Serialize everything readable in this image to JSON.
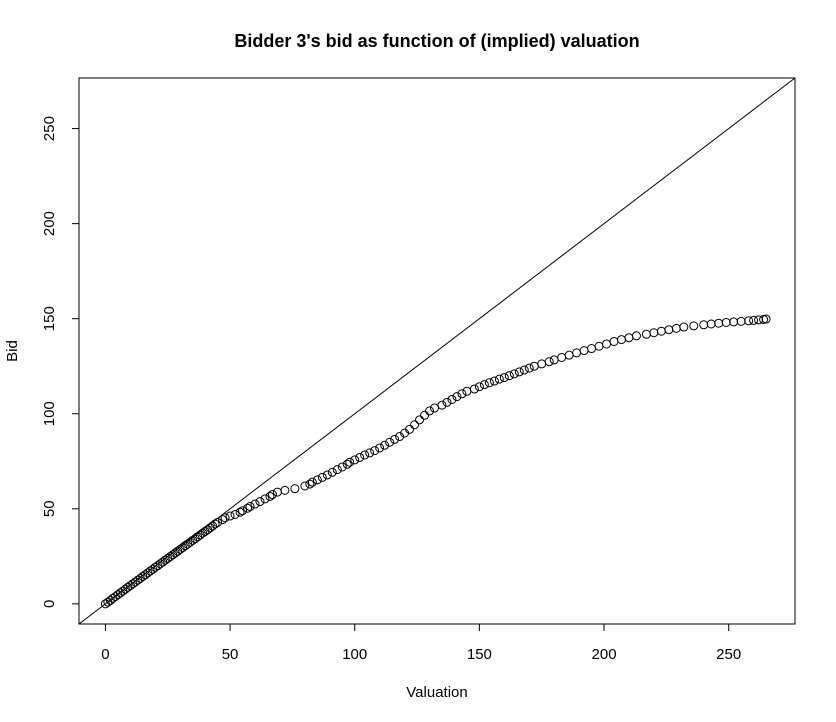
{
  "chart_data": {
    "type": "scatter",
    "title": "Bidder 3's bid as function of (implied) valuation",
    "xlabel": "Valuation",
    "ylabel": "Bid",
    "xlim": [
      -10.6,
      276.6
    ],
    "ylim": [
      -10.6,
      276.6
    ],
    "xticks": [
      "0",
      "50",
      "100",
      "150",
      "200",
      "250"
    ],
    "yticks": [
      "0",
      "50",
      "100",
      "150",
      "200",
      "250"
    ],
    "reference_line": {
      "slope": 1,
      "intercept": 0
    },
    "grid": false,
    "points": [
      [
        0,
        0
      ],
      [
        1,
        0.9
      ],
      [
        2,
        1.8
      ],
      [
        3,
        2.9
      ],
      [
        4,
        3.8
      ],
      [
        5,
        4.8
      ],
      [
        6,
        5.8
      ],
      [
        7,
        6.7
      ],
      [
        8,
        7.7
      ],
      [
        9,
        8.7
      ],
      [
        10,
        9.6
      ],
      [
        11,
        10.6
      ],
      [
        12,
        11.5
      ],
      [
        13,
        12.5
      ],
      [
        14,
        13.4
      ],
      [
        15,
        14.4
      ],
      [
        16,
        15.3
      ],
      [
        17,
        16.3
      ],
      [
        18,
        17.3
      ],
      [
        19,
        18.2
      ],
      [
        20,
        19.2
      ],
      [
        21,
        20.1
      ],
      [
        22,
        21.1
      ],
      [
        23,
        22.0
      ],
      [
        24,
        23.0
      ],
      [
        25,
        23.9
      ],
      [
        26,
        24.9
      ],
      [
        27,
        25.8
      ],
      [
        28,
        26.8
      ],
      [
        29,
        27.7
      ],
      [
        30,
        28.7
      ],
      [
        31,
        29.6
      ],
      [
        32,
        30.6
      ],
      [
        33,
        31.5
      ],
      [
        34,
        32.4
      ],
      [
        35,
        33.4
      ],
      [
        36,
        34.3
      ],
      [
        37,
        35.3
      ],
      [
        38,
        36.2
      ],
      [
        39,
        37.2
      ],
      [
        40,
        38.1
      ],
      [
        41,
        39.0
      ],
      [
        42,
        40.0
      ],
      [
        43,
        41.0
      ],
      [
        44,
        42.0
      ],
      [
        45,
        42.8
      ],
      [
        47,
        44.3
      ],
      [
        48,
        45.3
      ],
      [
        50,
        46.2
      ],
      [
        52,
        47.0
      ],
      [
        54,
        48.2
      ],
      [
        55,
        49.0
      ],
      [
        57,
        50.3
      ],
      [
        58,
        51.2
      ],
      [
        60,
        52.5
      ],
      [
        62,
        53.8
      ],
      [
        64,
        55.2
      ],
      [
        66,
        56.5
      ],
      [
        67,
        57.5
      ],
      [
        69,
        58.8
      ],
      [
        72,
        59.7
      ],
      [
        76,
        60.6
      ],
      [
        80,
        62.0
      ],
      [
        82,
        63.0
      ],
      [
        83,
        64.0
      ],
      [
        85,
        65.2
      ],
      [
        87,
        66.5
      ],
      [
        89,
        67.8
      ],
      [
        91,
        69.2
      ],
      [
        93,
        70.6
      ],
      [
        95,
        72.0
      ],
      [
        97,
        73.4
      ],
      [
        98,
        74.5
      ],
      [
        100,
        75.7
      ],
      [
        102,
        77.0
      ],
      [
        104,
        78.3
      ],
      [
        106,
        79.4
      ],
      [
        108,
        80.6
      ],
      [
        110,
        82.0
      ],
      [
        112,
        83.4
      ],
      [
        114,
        85.0
      ],
      [
        116,
        86.5
      ],
      [
        118,
        88.0
      ],
      [
        120,
        89.8
      ],
      [
        122,
        91.8
      ],
      [
        124,
        94.2
      ],
      [
        126,
        96.8
      ],
      [
        128,
        99.2
      ],
      [
        130,
        101.5
      ],
      [
        132,
        103.0
      ],
      [
        135,
        104.5
      ],
      [
        137,
        106.0
      ],
      [
        139,
        107.5
      ],
      [
        141,
        109.0
      ],
      [
        143,
        110.5
      ],
      [
        145,
        111.8
      ],
      [
        148,
        113.0
      ],
      [
        150,
        114.2
      ],
      [
        152,
        115.3
      ],
      [
        154,
        116.3
      ],
      [
        156,
        117.2
      ],
      [
        158,
        118.2
      ],
      [
        160,
        119.0
      ],
      [
        162,
        120.0
      ],
      [
        164,
        121.0
      ],
      [
        166,
        122.0
      ],
      [
        168,
        123.0
      ],
      [
        170,
        124.0
      ],
      [
        172,
        125.0
      ],
      [
        175,
        126.2
      ],
      [
        178,
        127.4
      ],
      [
        180,
        128.3
      ],
      [
        183,
        129.6
      ],
      [
        186,
        130.8
      ],
      [
        189,
        132.0
      ],
      [
        192,
        133.2
      ],
      [
        195,
        134.3
      ],
      [
        198,
        135.5
      ],
      [
        201,
        136.7
      ],
      [
        204,
        138.0
      ],
      [
        207,
        139.0
      ],
      [
        210,
        140.0
      ],
      [
        213,
        141.0
      ],
      [
        217,
        141.8
      ],
      [
        220,
        142.6
      ],
      [
        223,
        143.4
      ],
      [
        226,
        144.2
      ],
      [
        229,
        144.9
      ],
      [
        232,
        145.6
      ],
      [
        236,
        146.2
      ],
      [
        240,
        146.8
      ],
      [
        243,
        147.2
      ],
      [
        246,
        147.6
      ],
      [
        249,
        148.0
      ],
      [
        252,
        148.3
      ],
      [
        255,
        148.6
      ],
      [
        258,
        148.9
      ],
      [
        260,
        149.1
      ],
      [
        262,
        149.4
      ],
      [
        264,
        149.6
      ],
      [
        265,
        149.8
      ]
    ]
  }
}
